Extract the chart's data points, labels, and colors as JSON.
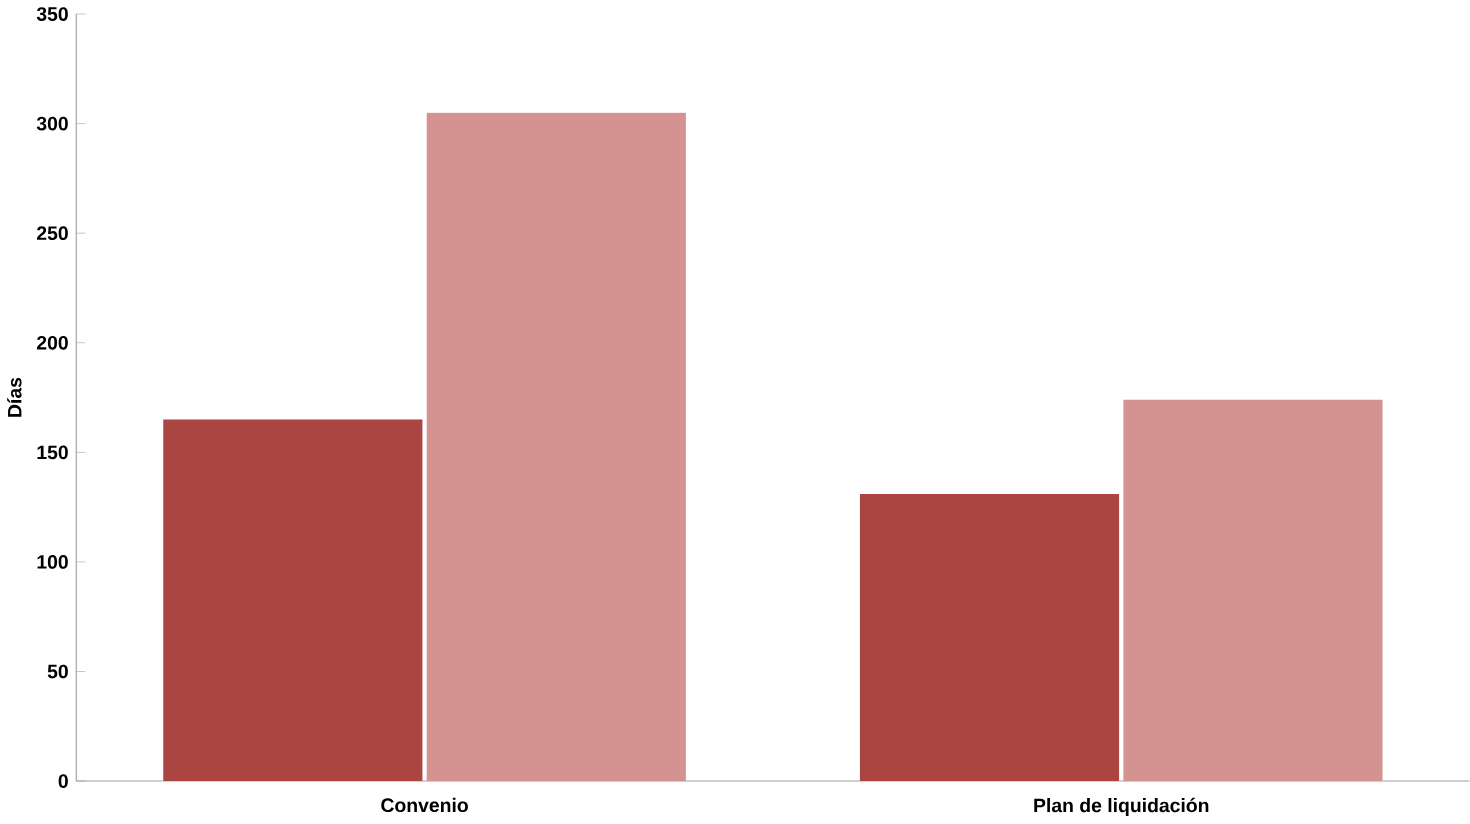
{
  "chart_data": {
    "type": "bar",
    "ylabel": "Días",
    "categories": [
      "Convenio",
      "Plan de liquidación"
    ],
    "series": [
      {
        "color": "#ab4541",
        "values": [
          165,
          131
        ]
      },
      {
        "color": "#d49391",
        "values": [
          305,
          174
        ]
      }
    ],
    "ylim": [
      0,
      350
    ],
    "yticks": [
      0,
      50,
      100,
      150,
      200,
      250,
      300,
      350
    ],
    "grid": false
  }
}
